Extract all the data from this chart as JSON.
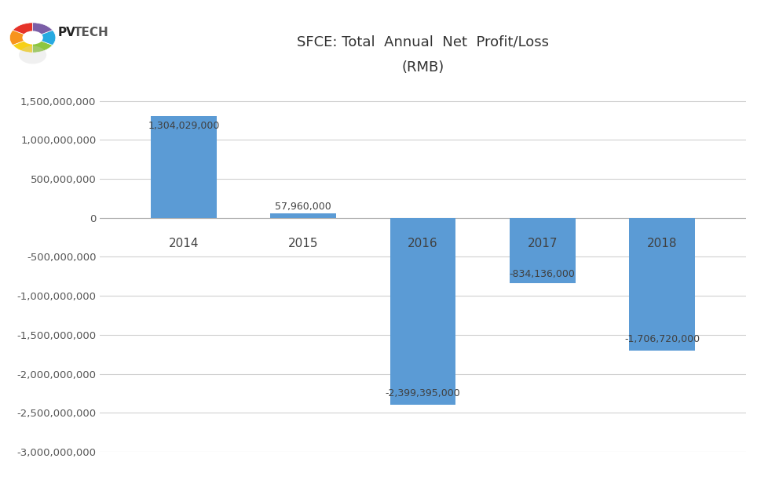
{
  "title_line1": "SFCE: Total  Annual  Net  Profit/Loss",
  "title_line2": "(RMB)",
  "categories": [
    "2014",
    "2015",
    "2016",
    "2017",
    "2018"
  ],
  "values": [
    1304029000,
    57960000,
    -2399395000,
    -834136000,
    -1706720000
  ],
  "bar_color": "#5B9BD5",
  "bar_labels": [
    "1,304,029,000",
    "57,960,000",
    "-2,399,395,000",
    "-834,136,000",
    "-1,706,720,000"
  ],
  "ylim_min": -3000000000,
  "ylim_max": 1700000000,
  "ytick_min": -3000000000,
  "ytick_max": 1500000000,
  "ytick_interval": 500000000,
  "background_color": "#FFFFFF",
  "plot_bg_color": "#FFFFFF",
  "grid_color": "#D0D0D0",
  "bar_width": 0.55,
  "title_fontsize": 13,
  "tick_fontsize": 9.5,
  "label_fontsize": 9,
  "category_fontsize": 11,
  "logo_colors": [
    "#E63329",
    "#F7941D",
    "#F7D018",
    "#8DC63F",
    "#27AAE1",
    "#7B5EA7"
  ],
  "logo_text_pv": "PV",
  "logo_text_tech": "TECH"
}
